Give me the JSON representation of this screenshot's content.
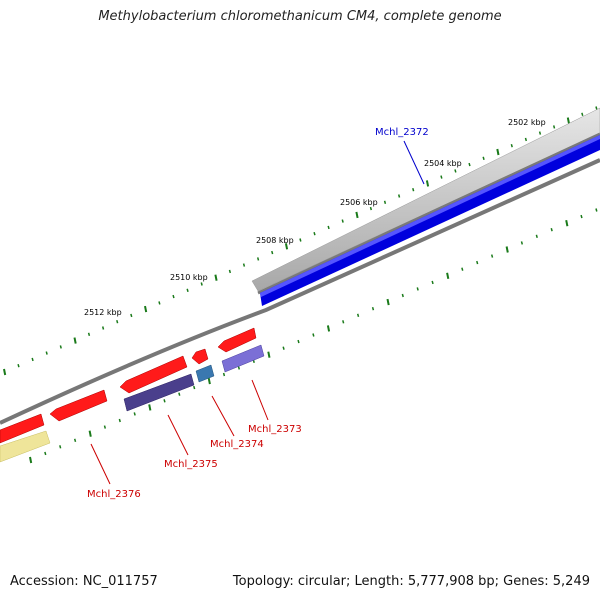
{
  "title": "Methylobacterium chloromethanicum CM4, complete genome",
  "footer": {
    "accession": "Accession: NC_011757",
    "topology": "Topology: circular; Length: 5,777,908 bp; Genes: 5,249"
  },
  "ticks": [
    {
      "label": "2502 kbp"
    },
    {
      "label": "2504 kbp"
    },
    {
      "label": "2506 kbp"
    },
    {
      "label": "2508 kbp"
    },
    {
      "label": "2510 kbp"
    },
    {
      "label": "2512 kbp"
    }
  ],
  "genes": [
    {
      "id": "Mchl_2372",
      "strand": "forward",
      "color": "#0000dd"
    },
    {
      "id": "Mchl_2373",
      "strand": "reverse",
      "color": "#ff0000"
    },
    {
      "id": "Mchl_2374",
      "strand": "reverse",
      "color": "#ff0000"
    },
    {
      "id": "Mchl_2375",
      "strand": "reverse",
      "color": "#ff0000"
    },
    {
      "id": "Mchl_2376",
      "strand": "reverse",
      "color": "#ff0000"
    }
  ],
  "colors": {
    "forward_cds": "#0000dd",
    "reverse_cds": "#ff0000",
    "forward_label": "#0000cc",
    "reverse_label": "#cc0000",
    "tick_marks": "#1a7a1a",
    "backbone": "#7a7a7a",
    "gene_segment": "#c8c8c8",
    "cog_a": "#4a3f8c",
    "cog_b": "#7b6fd6",
    "cog_c": "#3a78b0",
    "cog_d": "#efe59a"
  }
}
